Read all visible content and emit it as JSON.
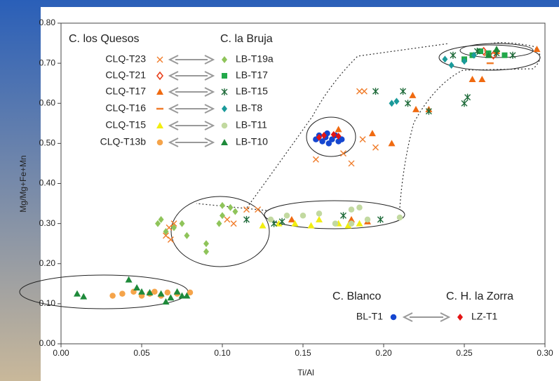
{
  "chart_data": {
    "type": "scatter",
    "x_label": "Ti/Al",
    "y_label": "Mg/Mg+Fe+Mn",
    "xlim": [
      0,
      0.3
    ],
    "ylim": [
      0,
      0.8
    ],
    "xticks": [
      {
        "value": 0,
        "label": "0.00"
      },
      {
        "value": 0.05,
        "label": "0.05"
      },
      {
        "value": 0.1,
        "label": "0.10"
      },
      {
        "value": 0.15,
        "label": "0.15"
      },
      {
        "value": 0.2,
        "label": "0.20"
      },
      {
        "value": 0.25,
        "label": "0.25"
      },
      {
        "value": 0.3,
        "label": "0.30"
      }
    ],
    "yticks": [
      {
        "value": 0,
        "label": "0.00"
      },
      {
        "value": 0.1,
        "label": "0.10"
      },
      {
        "value": 0.2,
        "label": "0.20"
      },
      {
        "value": 0.3,
        "label": "0.30"
      },
      {
        "value": 0.4,
        "label": "0.40"
      },
      {
        "value": 0.5,
        "label": "0.50"
      },
      {
        "value": 0.6,
        "label": "0.60"
      },
      {
        "value": 0.7,
        "label": "0.70"
      },
      {
        "value": 0.8,
        "label": "0.80"
      }
    ],
    "legend_groups": [
      "C. los Quesos",
      "C. la Bruja",
      "C. Blanco",
      "C. H. la Zorra"
    ],
    "series": [
      {
        "name": "CLQ-T23",
        "color": "#f07c2a",
        "marker": "x",
        "x": [
          0.065,
          0.067,
          0.07,
          0.068,
          0.103,
          0.107,
          0.115,
          0.122,
          0.158,
          0.175,
          0.185,
          0.188,
          0.187,
          0.18,
          0.195,
          0.264
        ],
        "values": [
          0.27,
          0.29,
          0.3,
          0.26,
          0.31,
          0.3,
          0.335,
          0.335,
          0.46,
          0.475,
          0.63,
          0.63,
          0.51,
          0.45,
          0.49,
          0.725
        ]
      },
      {
        "name": "CLQ-T21",
        "color": "#e8401c",
        "marker": "diamond-open",
        "x": [
          0.262,
          0.268
        ],
        "values": [
          0.73,
          0.72
        ]
      },
      {
        "name": "CLQ-T17",
        "color": "#f06a10",
        "marker": "triangle",
        "x": [
          0.172,
          0.193,
          0.205,
          0.218,
          0.22,
          0.228,
          0.255,
          0.261,
          0.295,
          0.27,
          0.143,
          0.18,
          0.19
        ],
        "values": [
          0.535,
          0.525,
          0.5,
          0.62,
          0.585,
          0.585,
          0.66,
          0.66,
          0.735,
          0.73,
          0.31,
          0.31,
          0.305
        ]
      },
      {
        "name": "CLQ-T16",
        "color": "#f07c2a",
        "marker": "dash",
        "x": [
          0.266,
          0.27
        ],
        "values": [
          0.7,
          0.73
        ]
      },
      {
        "name": "CLQ-T15",
        "color": "#f2ee10",
        "marker": "triangle",
        "x": [
          0.125,
          0.135,
          0.145,
          0.155,
          0.16,
          0.172,
          0.178,
          0.185
        ],
        "values": [
          0.295,
          0.3,
          0.3,
          0.295,
          0.31,
          0.3,
          0.295,
          0.3
        ]
      },
      {
        "name": "CLQ-T13b",
        "color": "#f5a44a",
        "marker": "circle",
        "x": [
          0.032,
          0.038,
          0.045,
          0.05,
          0.055,
          0.058,
          0.062,
          0.066,
          0.072,
          0.08
        ],
        "values": [
          0.12,
          0.125,
          0.13,
          0.12,
          0.125,
          0.13,
          0.12,
          0.128,
          0.125,
          0.128
        ]
      },
      {
        "name": "LB-T19a",
        "color": "#8fc45a",
        "marker": "diamond",
        "x": [
          0.06,
          0.062,
          0.065,
          0.07,
          0.075,
          0.078,
          0.09,
          0.09,
          0.098,
          0.1,
          0.105,
          0.1,
          0.108
        ],
        "values": [
          0.3,
          0.31,
          0.28,
          0.29,
          0.3,
          0.27,
          0.25,
          0.23,
          0.3,
          0.345,
          0.34,
          0.32,
          0.33
        ]
      },
      {
        "name": "LB-T17",
        "color": "#22a84a",
        "marker": "square",
        "x": [
          0.25,
          0.255,
          0.26,
          0.265,
          0.275
        ],
        "values": [
          0.71,
          0.72,
          0.73,
          0.725,
          0.72
        ]
      },
      {
        "name": "LB-T15",
        "color": "#1f6b3a",
        "marker": "star",
        "x": [
          0.115,
          0.132,
          0.137,
          0.175,
          0.198,
          0.195,
          0.212,
          0.215,
          0.228,
          0.25,
          0.252,
          0.243,
          0.258,
          0.27,
          0.28
        ],
        "values": [
          0.31,
          0.3,
          0.305,
          0.32,
          0.31,
          0.63,
          0.63,
          0.6,
          0.58,
          0.6,
          0.615,
          0.72,
          0.73,
          0.725,
          0.72
        ]
      },
      {
        "name": "LB-T8",
        "color": "#1a9a9a",
        "marker": "diamond",
        "x": [
          0.208,
          0.205,
          0.238,
          0.242,
          0.25,
          0.256
        ],
        "values": [
          0.605,
          0.6,
          0.71,
          0.695,
          0.705,
          0.72
        ]
      },
      {
        "name": "LB-T11",
        "color": "#c2d9a0",
        "marker": "circle",
        "x": [
          0.13,
          0.14,
          0.15,
          0.16,
          0.17,
          0.18,
          0.185,
          0.19,
          0.21,
          0.18
        ],
        "values": [
          0.31,
          0.32,
          0.32,
          0.325,
          0.3,
          0.335,
          0.34,
          0.31,
          0.315,
          0.3
        ]
      },
      {
        "name": "LB-T10",
        "color": "#1e8a3a",
        "marker": "triangle",
        "x": [
          0.01,
          0.014,
          0.042,
          0.047,
          0.05,
          0.055,
          0.062,
          0.065,
          0.068,
          0.072,
          0.075,
          0.078,
          0.265,
          0.27
        ],
        "values": [
          0.125,
          0.118,
          0.16,
          0.14,
          0.13,
          0.128,
          0.125,
          0.105,
          0.115,
          0.13,
          0.12,
          0.12,
          0.72,
          0.735
        ]
      },
      {
        "name": "BL-T1",
        "color": "#1546d0",
        "marker": "circle",
        "x": [
          0.158,
          0.16,
          0.162,
          0.164,
          0.166,
          0.168,
          0.17,
          0.172,
          0.174,
          0.165
        ],
        "values": [
          0.51,
          0.52,
          0.505,
          0.515,
          0.5,
          0.51,
          0.52,
          0.505,
          0.51,
          0.525
        ]
      },
      {
        "name": "LZ-T1",
        "color": "#e41414",
        "marker": "diamond",
        "x": [
          0.16,
          0.163,
          0.169,
          0.172
        ],
        "values": [
          0.515,
          0.52,
          0.522,
          0.518
        ]
      }
    ]
  }
}
